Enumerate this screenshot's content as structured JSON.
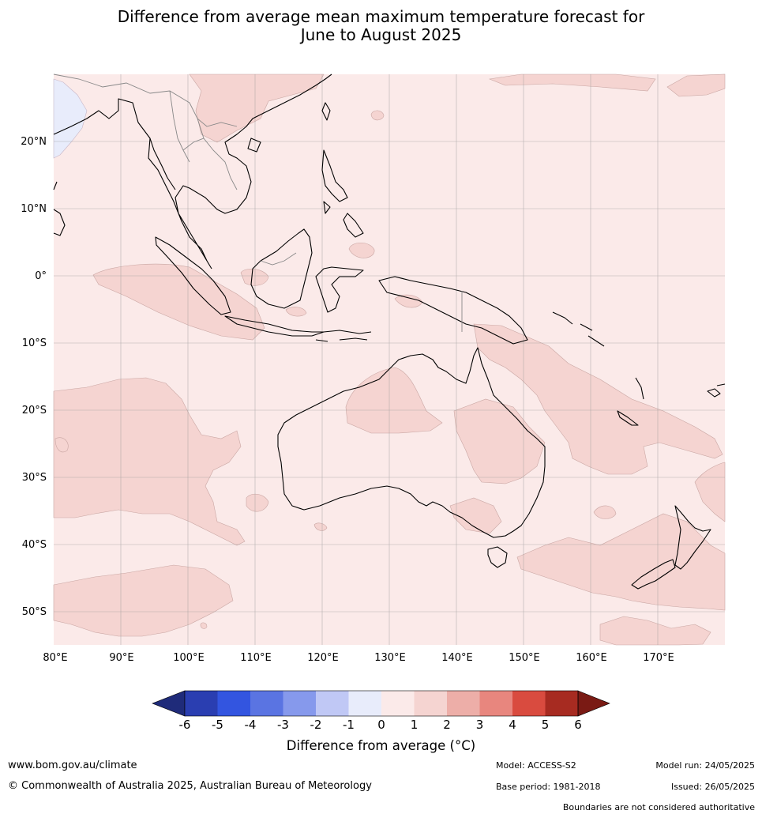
{
  "title_line1": "Difference from average mean maximum temperature forecast for",
  "title_line2": "June to August 2025",
  "map": {
    "lon_ticks": [
      "80°E",
      "90°E",
      "100°E",
      "110°E",
      "120°E",
      "130°E",
      "140°E",
      "150°E",
      "160°E",
      "170°E"
    ],
    "lat_ticks": [
      "20°N",
      "10°N",
      "0°",
      "10°S",
      "20°S",
      "30°S",
      "40°S",
      "50°S"
    ],
    "extent": {
      "lon": [
        80,
        180
      ],
      "lat": [
        -55,
        30
      ]
    },
    "colors": {
      "band_0_1": "#fbeae9",
      "band_1_2": "#f5d4d1",
      "band_m1_0": "#e8ecfb",
      "grid": "#999999"
    }
  },
  "colorbar": {
    "ticks": [
      "-6",
      "-5",
      "-4",
      "-3",
      "-2",
      "-1",
      "0",
      "1",
      "2",
      "3",
      "4",
      "5",
      "6"
    ],
    "colors": [
      "#1f2b7a",
      "#2a3eb1",
      "#3355e0",
      "#5a74e2",
      "#8699ec",
      "#c0c8f5",
      "#e8ecfb",
      "#fbeae9",
      "#f5d4d1",
      "#edaea8",
      "#e8867e",
      "#d94b3f",
      "#a72b21",
      "#7a1a14"
    ],
    "label": "Difference from average (°C)"
  },
  "footer": {
    "website": "www.bom.gov.au/climate",
    "copyright": "© Commonwealth of Australia 2025, Australian Bureau of Meteorology",
    "model": "Model: ACCESS-S2",
    "base_period": "Base period: 1981-2018",
    "model_run": "Model run: 24/05/2025",
    "issued": "Issued: 26/05/2025",
    "disclaimer": "Boundaries are not considered authoritative"
  }
}
